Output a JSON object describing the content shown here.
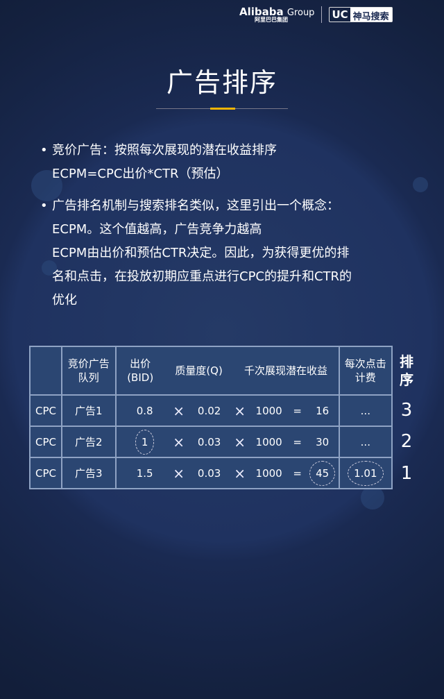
{
  "brand": {
    "alibaba": "Alibaba",
    "group": "Group",
    "alibaba_cn": "阿里巴巴集团",
    "uc": "UC",
    "uc_name": "神马搜索"
  },
  "title": "广告排序",
  "accent": "#f2b400",
  "bullets": [
    {
      "lines": [
        "竞价广告：按照每次展现的潜在收益排序",
        "ECPM=CPC出价*CTR（预估）"
      ]
    },
    {
      "lines": [
        "广告排名机制与搜索排名类似，这里引出一个概念：",
        "ECPM。这个值越高，广告竞争力越高",
        "ECPM由出价和预估CTR决定。因此，为获得更优的排",
        "名和点击，在投放初期应重点进行CPC的提升和CTR的",
        "优化"
      ]
    }
  ],
  "table": {
    "headers": {
      "queue": [
        "竞价广告",
        "队列"
      ],
      "bid": [
        "出价",
        "(BID)"
      ],
      "quality": "质量度(Q)",
      "ecpm": "千次展现潜在收益",
      "cpc": [
        "每次点击",
        "计费"
      ],
      "rank": [
        "排",
        "序"
      ]
    },
    "rows": [
      {
        "type": "CPC",
        "ad": "广告1",
        "bid": "0.8",
        "q": "0.02",
        "k": "1000",
        "ecpm": "16",
        "cost": "...",
        "rank": "3"
      },
      {
        "type": "CPC",
        "ad": "广告2",
        "bid": "1",
        "q": "0.03",
        "k": "1000",
        "ecpm": "30",
        "cost": "...",
        "rank": "2"
      },
      {
        "type": "CPC",
        "ad": "广告3",
        "bid": "1.5",
        "q": "0.03",
        "k": "1000",
        "ecpm": "45",
        "cost": "1.01",
        "rank": "1"
      }
    ],
    "times": "×",
    "equals": "="
  }
}
